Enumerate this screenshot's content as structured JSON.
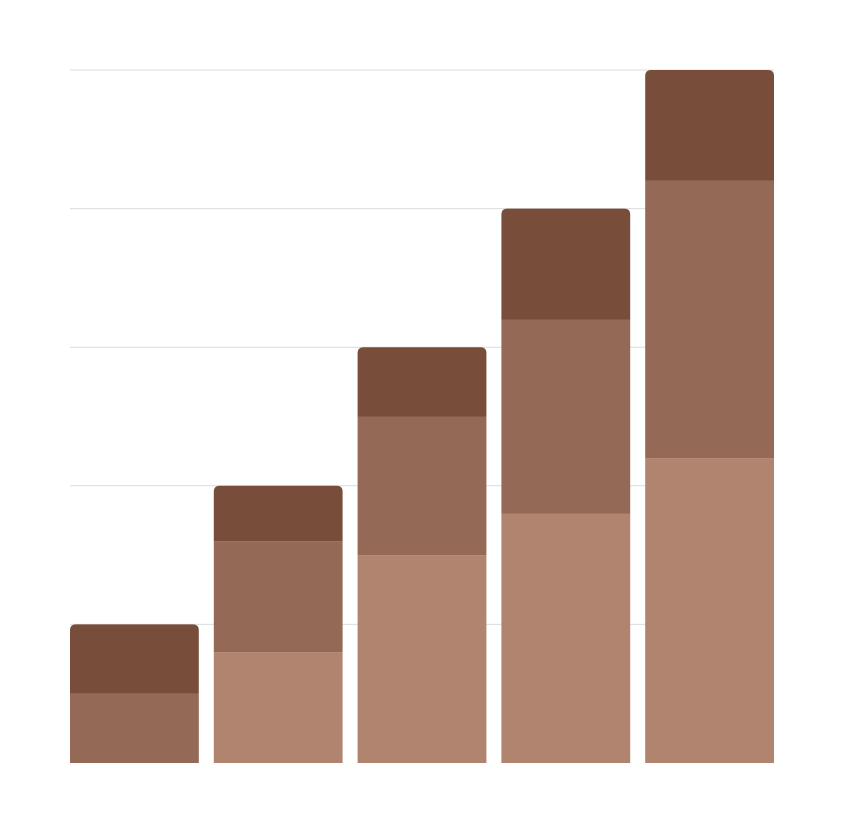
{
  "chart_data": {
    "type": "bar",
    "stacked": true,
    "categories": [
      "",
      "",
      "",
      "",
      ""
    ],
    "series": [
      {
        "values": [
          0,
          40,
          75,
          90,
          110
        ],
        "color": "#b0846f"
      },
      {
        "values": [
          25,
          40,
          50,
          70,
          100
        ],
        "color": "#946955"
      },
      {
        "values": [
          25,
          20,
          25,
          40,
          40
        ],
        "color": "#784e3b"
      }
    ],
    "ylim": [
      0,
      250
    ],
    "grid": true,
    "legend": "none",
    "colors": {
      "grid": "#dcdcdc",
      "background": "#ffffff"
    }
  }
}
